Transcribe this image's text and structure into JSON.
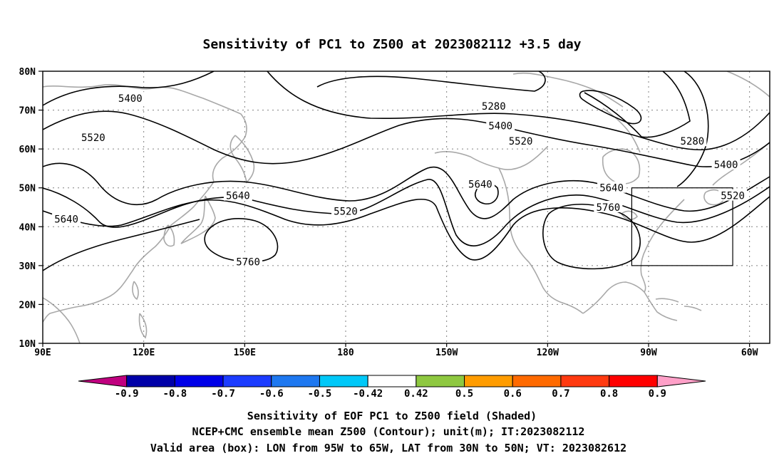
{
  "title": "Sensitivity of PC1 to Z500 at 2023082112 +3.5 day",
  "map": {
    "lon_range": [
      "90E",
      "60W"
    ],
    "lat_range": [
      "10N",
      "80N"
    ],
    "lat_ticks": [
      {
        "label": "80N",
        "lat": 80
      },
      {
        "label": "70N",
        "lat": 70
      },
      {
        "label": "60N",
        "lat": 60
      },
      {
        "label": "50N",
        "lat": 50
      },
      {
        "label": "40N",
        "lat": 40
      },
      {
        "label": "30N",
        "lat": 30
      },
      {
        "label": "20N",
        "lat": 20
      },
      {
        "label": "10N",
        "lat": 10
      }
    ],
    "lon_ticks": [
      {
        "label": "90E",
        "lon": 90
      },
      {
        "label": "120E",
        "lon": 120
      },
      {
        "label": "150E",
        "lon": 150
      },
      {
        "label": "180",
        "lon": 180
      },
      {
        "label": "150W",
        "lon": 210
      },
      {
        "label": "120W",
        "lon": 240
      },
      {
        "label": "90W",
        "lon": 270
      },
      {
        "label": "60W",
        "lon": 300
      }
    ],
    "gridlines": "dotted",
    "contour_labels": [
      {
        "text": "5400",
        "lon": 116,
        "lat": 73
      },
      {
        "text": "5520",
        "lon": 105,
        "lat": 63
      },
      {
        "text": "5640",
        "lon": 97,
        "lat": 42
      },
      {
        "text": "5640",
        "lon": 148,
        "lat": 48
      },
      {
        "text": "5760",
        "lon": 151,
        "lat": 31
      },
      {
        "text": "5520",
        "lon": 180,
        "lat": 44
      },
      {
        "text": "5640",
        "lon": 220,
        "lat": 51
      },
      {
        "text": "5280",
        "lon": 224,
        "lat": 71
      },
      {
        "text": "5400",
        "lon": 226,
        "lat": 66
      },
      {
        "text": "5520",
        "lon": 232,
        "lat": 62
      },
      {
        "text": "5640",
        "lon": 259,
        "lat": 50
      },
      {
        "text": "5760",
        "lon": 258,
        "lat": 45
      },
      {
        "text": "5280",
        "lon": 283,
        "lat": 62
      },
      {
        "text": "5400",
        "lon": 293,
        "lat": 56
      },
      {
        "text": "5520",
        "lon": 295,
        "lat": 48
      }
    ],
    "valid_box": {
      "lon_west": 265,
      "lon_east": 295,
      "lat_south": 30,
      "lat_north": 50
    }
  },
  "colorbar": {
    "colors": [
      "#c0007f",
      "#0000a8",
      "#0000e8",
      "#1c3cff",
      "#1e78f0",
      "#00c8f8",
      "#ffffff",
      "#8ec840",
      "#ff9c00",
      "#ff6a00",
      "#ff3a10",
      "#ff0000",
      "#ffa0c8"
    ],
    "labels": [
      "-0.9",
      "-0.8",
      "-0.7",
      "-0.6",
      "-0.5",
      "-0.42",
      "0.42",
      "0.5",
      "0.6",
      "0.7",
      "0.8",
      "0.9"
    ]
  },
  "captions": [
    "Sensitivity of EOF PC1 to Z500 field (Shaded)",
    "NCEP+CMC ensemble mean Z500 (Contour); unit(m); IT:2023082112",
    "Valid area (box): LON from 95W to 65W, LAT from 30N to 50N; VT: 2023082612"
  ]
}
